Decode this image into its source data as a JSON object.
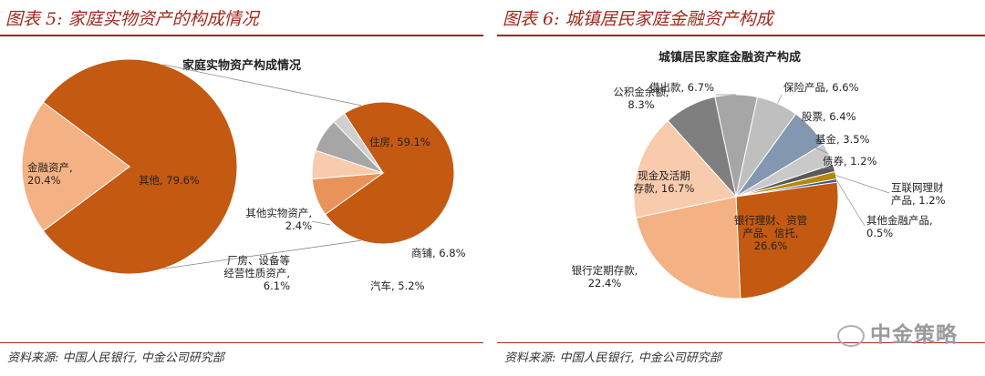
{
  "left": {
    "fig_title": "图表 5:  家庭实物资产的构成情况",
    "source": "资料来源:  中国人民银行,  中金公司研究部"
  },
  "right": {
    "fig_title": "图表 6:  城镇居民家庭金融资产构成",
    "source": "资料来源:  中国人民银行,  中金公司研究部"
  },
  "watermark": "中金策略",
  "colors": {
    "accent": "#9e2a1c",
    "orange": "#c45911",
    "light_orange": "#f4b183"
  },
  "chart_data": [
    {
      "type": "pie",
      "title": "家庭实物资产构成情况",
      "main_pie": {
        "labels": [
          "其他, 79.6%",
          "金融资产, 20.4%"
        ],
        "categories": [
          "其他",
          "金融资产"
        ],
        "values": [
          79.6,
          20.4
        ],
        "colors": [
          "#c45911",
          "#f4b183"
        ]
      },
      "breakdown_pie": {
        "labels": [
          "住房, 59.1%",
          "商铺, 6.8%",
          "汽车, 5.2%",
          "厂房、设备等经营性质资产, 6.1%",
          "其他实物资产, 2.4%"
        ],
        "categories": [
          "住房",
          "商铺",
          "汽车",
          "厂房、设备等经营性质资产",
          "其他实物资产"
        ],
        "values": [
          59.1,
          6.8,
          5.2,
          6.1,
          2.4
        ],
        "colors": [
          "#c45911",
          "#e9935a",
          "#f8cbad",
          "#a6a6a6",
          "#d0d0d0"
        ]
      }
    },
    {
      "type": "pie",
      "title": "城镇居民家庭金融资产构成",
      "labels": [
        "借出款, 6.7%",
        "保险产品, 6.6%",
        "股票, 6.4%",
        "基金, 3.5%",
        "债券, 1.2%",
        "互联网理财产品, 1.2%",
        "其他金融产品, 0.5%",
        "银行理财、资管产品、信托, 26.6%",
        "银行定期存款, 22.4%",
        "现金及活期存款, 16.7%",
        "公积金余额, 8.3%"
      ],
      "categories": [
        "借出款",
        "保险产品",
        "股票",
        "基金",
        "债券",
        "互联网理财产品",
        "其他金融产品",
        "银行理财、资管产品、信托",
        "银行定期存款",
        "现金及活期存款",
        "公积金余额"
      ],
      "values": [
        6.7,
        6.6,
        6.4,
        3.5,
        1.2,
        1.2,
        0.5,
        26.6,
        22.4,
        16.7,
        8.3
      ],
      "colors": [
        "#a6a6a6",
        "#bfbfbf",
        "#8497b0",
        "#c9c9c9",
        "#595959",
        "#b8860b",
        "#2f5597",
        "#c45911",
        "#f4b183",
        "#f8cbad",
        "#7f7f7f"
      ]
    }
  ]
}
